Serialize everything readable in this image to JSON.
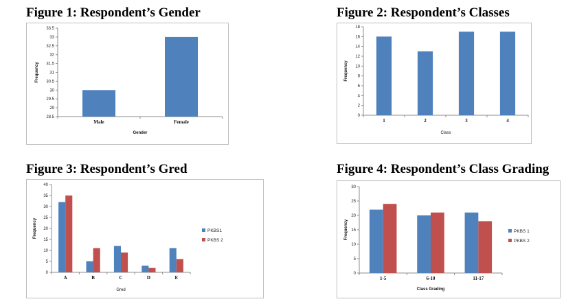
{
  "chart_data": [
    {
      "type": "bar",
      "title": "Figure 1: Respondent’s Gender",
      "categories": [
        "Male",
        "Female"
      ],
      "values": [
        30,
        33
      ],
      "xlabel": "Gender",
      "ylabel": "Frequency",
      "ylim": [
        28.5,
        33.5
      ],
      "yticks": [
        "28.5",
        "29",
        "29.5",
        "30",
        "30.5",
        "31",
        "31.5",
        "32",
        "32.5",
        "33",
        "33.5"
      ],
      "grid": false,
      "color": "#4f81bd"
    },
    {
      "type": "bar",
      "title": "Figure 2: Respondent’s Classes",
      "categories": [
        "1",
        "2",
        "3",
        "4"
      ],
      "values": [
        16,
        13,
        17,
        17
      ],
      "xlabel": "Class",
      "ylabel": "Frequency",
      "ylim": [
        0,
        18
      ],
      "yticks": [
        "0",
        "2",
        "4",
        "6",
        "8",
        "10",
        "12",
        "14",
        "16",
        "18"
      ],
      "grid": false,
      "color": "#4f81bd"
    },
    {
      "type": "bar",
      "title": "Figure 3: Respondent’s Gred",
      "categories": [
        "A",
        "B",
        "C",
        "D",
        "E"
      ],
      "series": [
        {
          "name": "PKBS1",
          "values": [
            32,
            5,
            12,
            3,
            11
          ],
          "color": "#4f81bd"
        },
        {
          "name": "PKBS 2",
          "values": [
            35,
            11,
            9,
            2,
            6
          ],
          "color": "#c0504d"
        }
      ],
      "xlabel": "Gred",
      "ylabel": "Frequency",
      "ylim": [
        0,
        40
      ],
      "yticks": [
        "0",
        "5",
        "10",
        "15",
        "20",
        "25",
        "30",
        "35",
        "40"
      ],
      "grid": false,
      "legend": "right"
    },
    {
      "type": "bar",
      "title": "Figure 4: Respondent’s Class Grading",
      "categories": [
        "1-5",
        "6-10",
        "11-17"
      ],
      "series": [
        {
          "name": "PKBS 1",
          "values": [
            22,
            20,
            21
          ],
          "color": "#4f81bd"
        },
        {
          "name": "PKBS 2",
          "values": [
            24,
            21,
            18
          ],
          "color": "#c0504d"
        }
      ],
      "xlabel": "Class Grading",
      "ylabel": "Frequency",
      "ylim": [
        0,
        30
      ],
      "yticks": [
        "0",
        "5",
        "10",
        "15",
        "20",
        "25",
        "30"
      ],
      "grid": false,
      "legend": "right"
    }
  ]
}
